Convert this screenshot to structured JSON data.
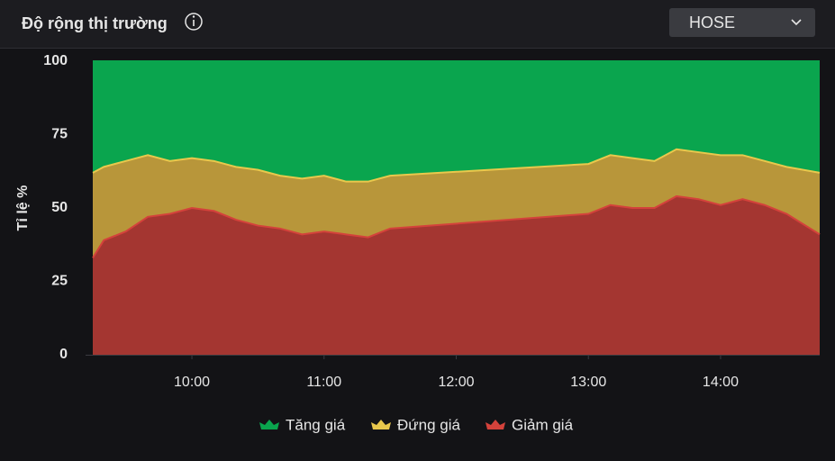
{
  "header": {
    "title": "Độ rộng thị trường",
    "dropdown": "HOSE"
  },
  "chart_data": {
    "type": "stacked_area",
    "y_label": "Tỉ lệ %",
    "x": [
      "09:15",
      "09:20",
      "09:30",
      "09:40",
      "09:50",
      "10:00",
      "10:10",
      "10:20",
      "10:30",
      "10:40",
      "10:50",
      "11:00",
      "11:10",
      "11:20",
      "11:30",
      "13:00",
      "13:10",
      "13:20",
      "13:30",
      "13:40",
      "13:50",
      "14:00",
      "14:10",
      "14:20",
      "14:30",
      "14:45"
    ],
    "series": [
      {
        "name": "Tăng giá",
        "color": "#0aa54e",
        "line_color": "#0aa54e",
        "values": [
          38,
          36,
          34,
          32,
          34,
          33,
          34,
          36,
          37,
          39,
          40,
          39,
          41,
          41,
          39,
          35,
          32,
          33,
          34,
          30,
          31,
          32,
          32,
          34,
          36,
          38
        ]
      },
      {
        "name": "Đứng giá",
        "color": "#b8963a",
        "line_color": "#e9c84c",
        "values": [
          29,
          25,
          24,
          21,
          18,
          17,
          17,
          18,
          19,
          18,
          19,
          19,
          18,
          19,
          18,
          17,
          17,
          17,
          16,
          16,
          16,
          17,
          15,
          15,
          16,
          21
        ]
      },
      {
        "name": "Giảm giá",
        "color": "#a43631",
        "line_color": "#d4423b",
        "values": [
          33,
          39,
          42,
          47,
          48,
          50,
          49,
          46,
          44,
          43,
          41,
          42,
          41,
          40,
          43,
          48,
          51,
          50,
          50,
          54,
          53,
          51,
          53,
          51,
          48,
          41
        ]
      }
    ],
    "xlim": [
      "09:15",
      "14:45"
    ],
    "xticks": [
      "10:00",
      "11:00",
      "12:00",
      "13:00",
      "14:00"
    ],
    "ylim": [
      0,
      100
    ],
    "yticks": [
      0,
      25,
      50,
      75,
      100
    ],
    "grid": false
  }
}
